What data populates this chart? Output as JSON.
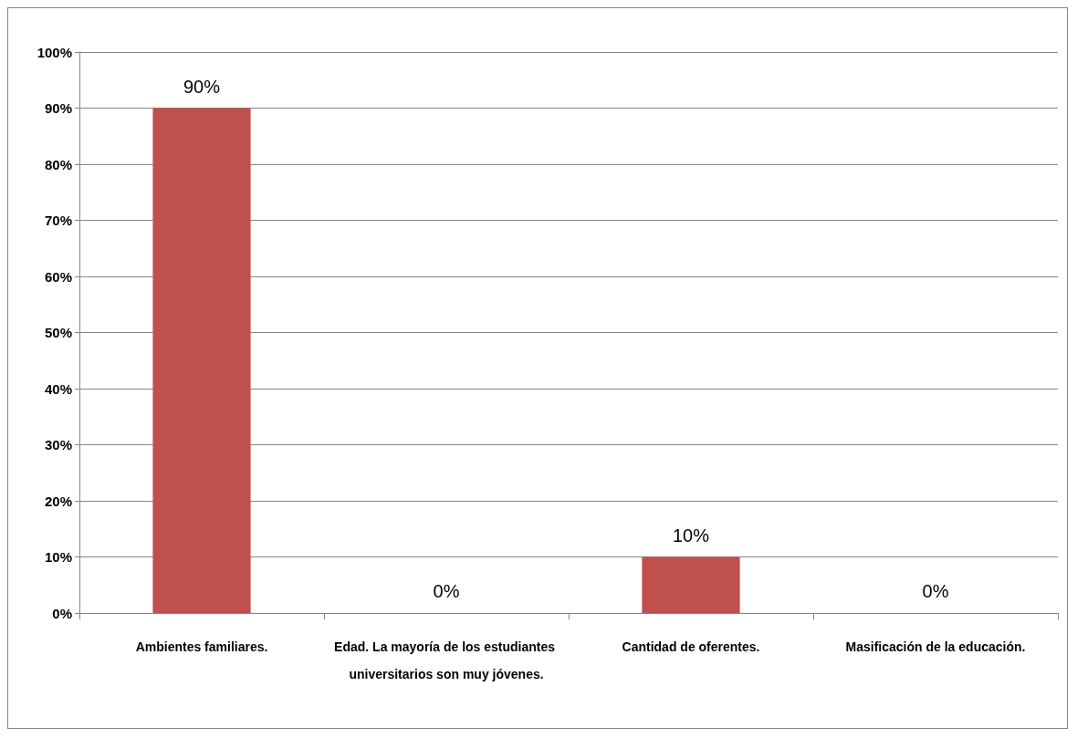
{
  "chart_data": {
    "type": "bar",
    "categories": [
      "Ambientes familiares.",
      "Edad. La mayoría de los estudiantes universitarios son muy jóvenes.",
      "Cantidad de oferentes.",
      "Masificación de la educación."
    ],
    "values": [
      90,
      0,
      10,
      0
    ],
    "color": "#c0504d",
    "value_labels": [
      "90%",
      "0%",
      "10%",
      "0%"
    ],
    "ylim": [
      0,
      100
    ],
    "yticks": [
      {
        "value": 0,
        "label": "0%"
      },
      {
        "value": 10,
        "label": "10%"
      },
      {
        "value": 20,
        "label": "20%"
      },
      {
        "value": 30,
        "label": "30%"
      },
      {
        "value": 40,
        "label": "40%"
      },
      {
        "value": 50,
        "label": "50%"
      },
      {
        "value": 60,
        "label": "60%"
      },
      {
        "value": 70,
        "label": "70%"
      },
      {
        "value": 80,
        "label": "80%"
      },
      {
        "value": 90,
        "label": "90%"
      },
      {
        "value": 100,
        "label": "100%"
      }
    ],
    "grid": "y"
  }
}
